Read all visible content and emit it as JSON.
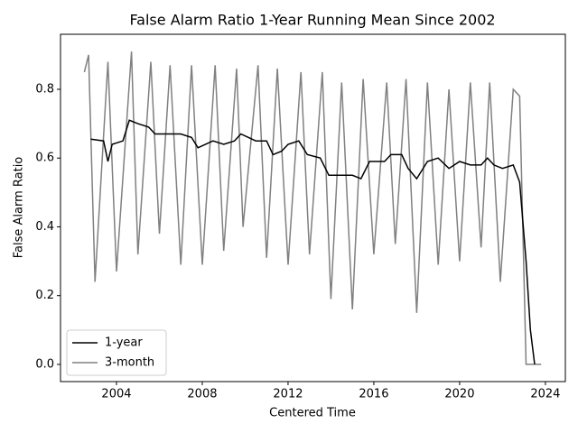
{
  "chart_data": {
    "type": "line",
    "title": "False Alarm Ratio 1-Year Running Mean Since 2002",
    "x_label": "Centered Time",
    "y_label": "False Alarm Ratio",
    "xlim": [
      2001.39,
      2024.93
    ],
    "ylim": [
      -0.05,
      0.96
    ],
    "xticks": [
      2004,
      2008,
      2012,
      2016,
      2020,
      2024
    ],
    "yticks": [
      {
        "value": 0,
        "label": "0.0"
      },
      0.2,
      0.4,
      0.6,
      0.8
    ],
    "legend": "lower left",
    "series": [
      {
        "name": "1-year",
        "color": "#000000",
        "x": [
          2002.8,
          2003.4,
          2003.6,
          2003.8,
          2004.3,
          2004.6,
          2005.0,
          2005.5,
          2005.8,
          2006.5,
          2007.0,
          2007.5,
          2007.8,
          2008.5,
          2009.0,
          2009.5,
          2009.8,
          2010.5,
          2011.0,
          2011.3,
          2011.7,
          2012.0,
          2012.5,
          2012.9,
          2013.5,
          2013.9,
          2014.5,
          2015.0,
          2015.4,
          2015.8,
          2016.5,
          2016.8,
          2017.3,
          2017.6,
          2018.0,
          2018.5,
          2019.0,
          2019.5,
          2020.0,
          2020.5,
          2021.0,
          2021.3,
          2021.6,
          2022.0,
          2022.5,
          2022.8,
          2023.1,
          2023.3,
          2023.5
        ],
        "values": [
          0.655,
          0.65,
          0.59,
          0.64,
          0.65,
          0.71,
          0.7,
          0.69,
          0.67,
          0.67,
          0.67,
          0.66,
          0.63,
          0.65,
          0.64,
          0.65,
          0.67,
          0.65,
          0.65,
          0.61,
          0.62,
          0.64,
          0.65,
          0.61,
          0.6,
          0.55,
          0.55,
          0.55,
          0.54,
          0.59,
          0.59,
          0.61,
          0.61,
          0.57,
          0.54,
          0.59,
          0.6,
          0.57,
          0.59,
          0.58,
          0.58,
          0.6,
          0.58,
          0.57,
          0.58,
          0.53,
          0.3,
          0.1,
          0.0
        ]
      },
      {
        "name": "3-month",
        "color": "#808080",
        "x": [
          2002.5,
          2002.7,
          2003.0,
          2003.6,
          2004.0,
          2004.7,
          2005.0,
          2005.6,
          2006.0,
          2006.5,
          2007.0,
          2007.5,
          2008.0,
          2008.6,
          2009.0,
          2009.6,
          2009.9,
          2010.6,
          2011.0,
          2011.5,
          2012.0,
          2012.6,
          2013.0,
          2013.6,
          2014.0,
          2014.5,
          2015.0,
          2015.5,
          2016.0,
          2016.6,
          2017.0,
          2017.5,
          2018.0,
          2018.5,
          2019.0,
          2019.5,
          2020.0,
          2020.5,
          2021.0,
          2021.4,
          2021.9,
          2022.5,
          2022.8,
          2023.1,
          2023.8
        ],
        "values": [
          0.85,
          0.9,
          0.24,
          0.88,
          0.27,
          0.91,
          0.32,
          0.88,
          0.38,
          0.87,
          0.29,
          0.87,
          0.29,
          0.87,
          0.33,
          0.86,
          0.4,
          0.87,
          0.31,
          0.86,
          0.29,
          0.85,
          0.32,
          0.85,
          0.19,
          0.82,
          0.16,
          0.83,
          0.32,
          0.82,
          0.35,
          0.83,
          0.15,
          0.82,
          0.29,
          0.8,
          0.3,
          0.82,
          0.34,
          0.82,
          0.24,
          0.8,
          0.78,
          0.0,
          0.0
        ]
      }
    ]
  }
}
